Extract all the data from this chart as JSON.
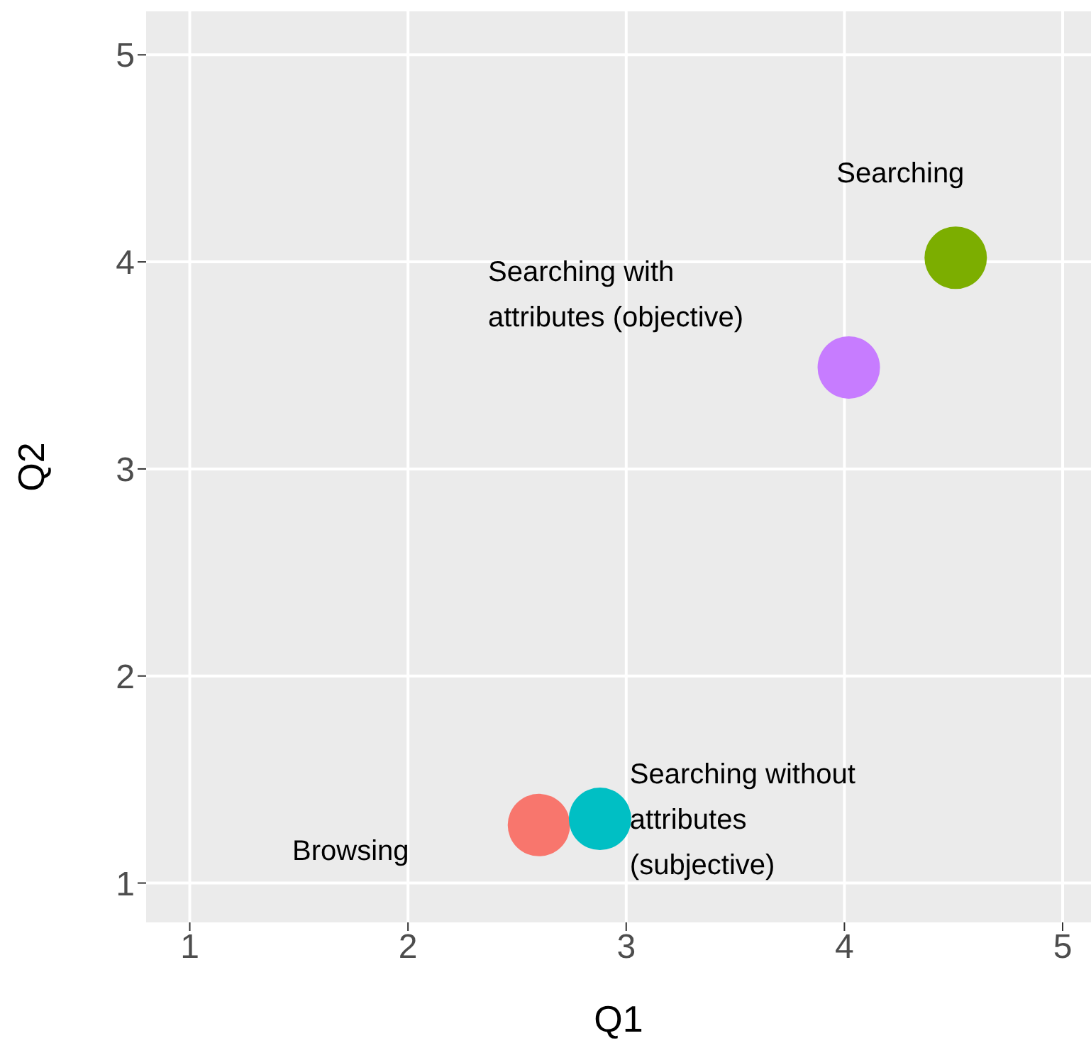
{
  "chart_data": {
    "type": "scatter",
    "xlabel": "Q1",
    "ylabel": "Q2",
    "xlim": [
      0.8,
      5.13
    ],
    "ylim": [
      0.81,
      5.21
    ],
    "xticks": [
      1,
      2,
      3,
      4,
      5
    ],
    "yticks": [
      1,
      2,
      3,
      4,
      5
    ],
    "grid": true,
    "legend": false,
    "marker": "circle",
    "series": [
      {
        "x": [
          2.6,
          2.88,
          4.02,
          4.51
        ],
        "values": [
          1.28,
          1.31,
          3.49,
          4.02
        ],
        "colors": [
          "#f8766d",
          "#00bfc4",
          "#c77cff",
          "#7cae00"
        ]
      }
    ],
    "annotations": [
      {
        "text": "Searching",
        "x": 4.51,
        "y": 4.02
      },
      "Searching with\nattributes (objective)",
      {
        "text": "Searching without\nattributes\n(subjective)",
        "x": 2.88,
        "y": 1.31
      },
      "Browsing"
    ]
  }
}
